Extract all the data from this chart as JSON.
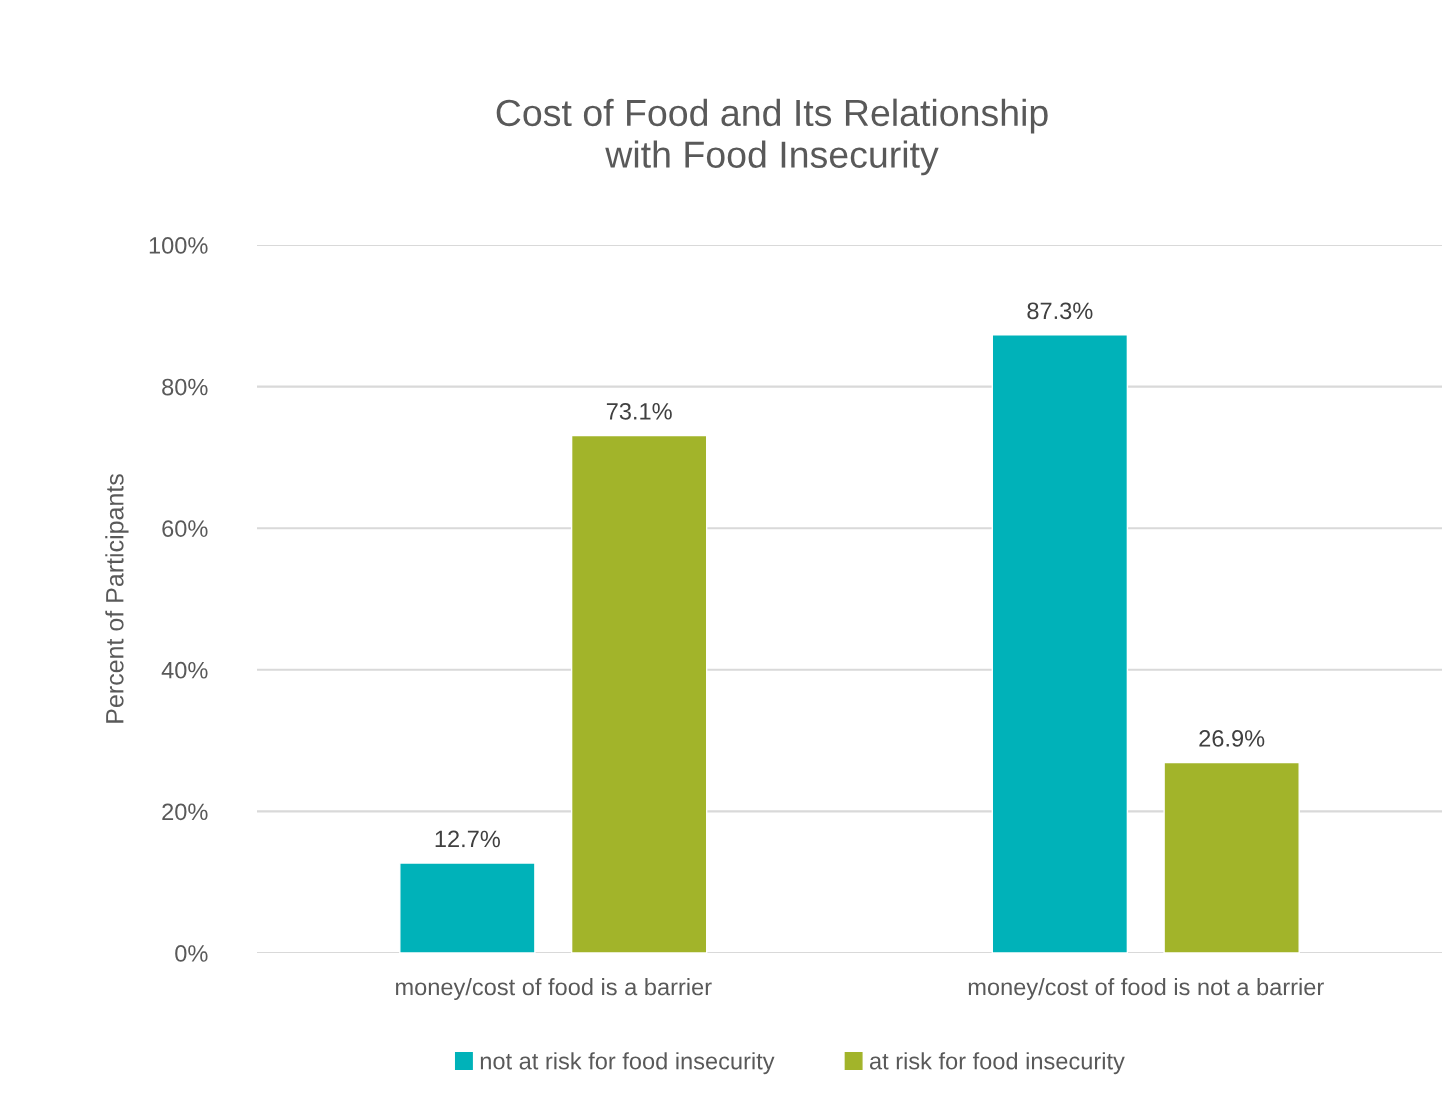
{
  "chart_data": {
    "type": "bar",
    "title": "Cost of Food and Its Relationship\nwith Food Insecurity",
    "ylabel": "Percent of Participants",
    "categories": [
      "money/cost of food is a barrier",
      "money/cost of food is not a barrier"
    ],
    "series": [
      {
        "name": "not at risk for food insecurity",
        "color": "#00b2b9",
        "values": [
          12.7,
          87.3
        ],
        "value_labels": [
          "12.7%",
          "87.3%"
        ]
      },
      {
        "name": "at risk for food insecurity",
        "color": "#a2b42a",
        "values": [
          73.1,
          26.9
        ],
        "value_labels": [
          "73.1%",
          "26.9%"
        ]
      }
    ],
    "ylim": [
      0,
      100
    ],
    "yticks": [
      {
        "value": 0,
        "label": "0%"
      },
      {
        "value": 20,
        "label": "20%"
      },
      {
        "value": 40,
        "label": "40%"
      },
      {
        "value": 60,
        "label": "60%"
      },
      {
        "value": 80,
        "label": "80%"
      },
      {
        "value": 100,
        "label": "100%"
      }
    ],
    "grid": "y",
    "legend": "bottom"
  }
}
